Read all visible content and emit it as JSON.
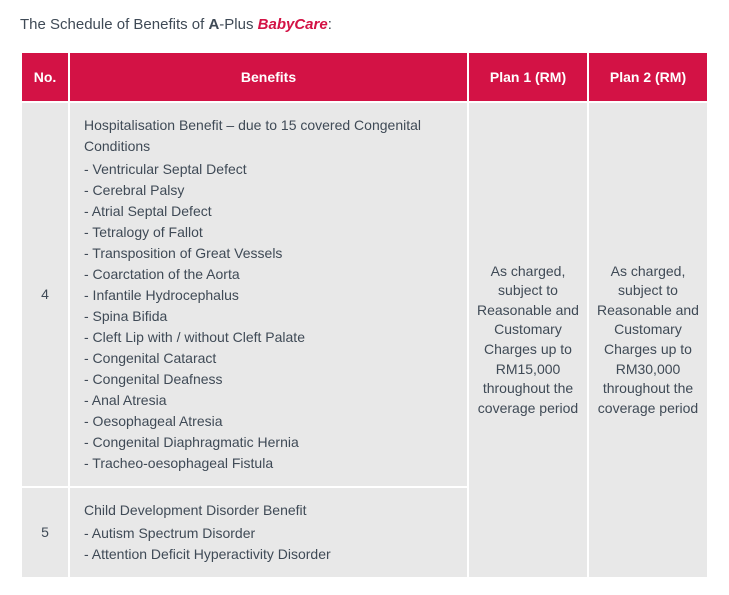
{
  "colors": {
    "header_bg": "#d31245",
    "header_text": "#ffffff",
    "cell_bg": "#e8e8e8",
    "body_text": "#3f4a56",
    "brand_accent": "#d31245"
  },
  "title": {
    "prefix": "The Schedule of Benefits of ",
    "brand_bold": "A",
    "brand_plus": "-Plus ",
    "brand_italic": "BabyCare",
    "suffix": ":"
  },
  "table": {
    "columns": [
      "No.",
      "Benefits",
      "Plan 1 (RM)",
      "Plan 2 (RM)"
    ],
    "rows": [
      {
        "no": "4",
        "benefit_heading": "Hospitalisation Benefit – due to 15 covered Congenital Conditions",
        "benefit_items": [
          "- Ventricular Septal Defect",
          "- Cerebral Palsy",
          "- Atrial Septal Defect",
          "- Tetralogy of Fallot",
          "- Transposition of Great Vessels",
          "- Coarctation of the Aorta",
          "- Infantile Hydrocephalus",
          "- Spina Bifida",
          "- Cleft Lip with / without Cleft Palate",
          "- Congenital Cataract",
          "- Congenital Deafness",
          "- Anal Atresia",
          "- Oesophageal Atresia",
          "- Congenital Diaphragmatic Hernia",
          "- Tracheo-oesophageal Fistula"
        ]
      },
      {
        "no": "5",
        "benefit_heading": "Child Development Disorder Benefit",
        "benefit_items": [
          "- Autism Spectrum Disorder",
          "- Attention Deficit Hyperactivity Disorder"
        ]
      }
    ],
    "plan1_text": "As charged, subject to Reasonable and Customary Charges up to RM15,000 throughout the coverage period",
    "plan2_text": "As charged, subject to Reasonable and Customary Charges up to RM30,000 throughout the coverage period"
  }
}
